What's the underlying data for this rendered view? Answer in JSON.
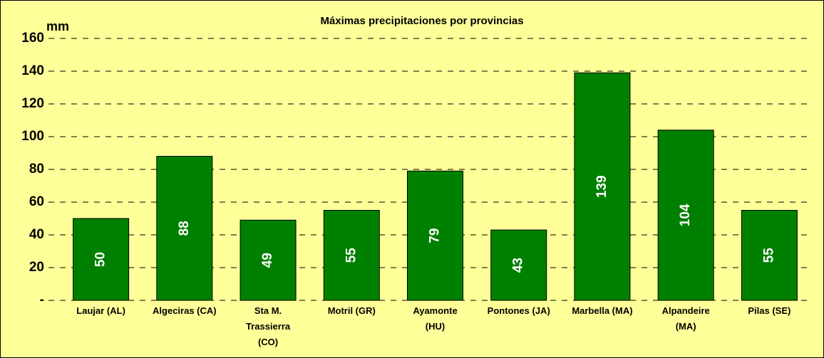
{
  "chart_data": {
    "type": "bar",
    "title": "Máximas precipitaciones por provincias",
    "y_label": "mm",
    "categories": [
      "Laujar (AL)",
      "Algeciras (CA)",
      "Sta M. Trassierra (CO)",
      "Motril (GR)",
      "Ayamonte (HU)",
      "Pontones (JA)",
      "Marbella (MA)",
      "Alpandeire (MA)",
      "Pilas (SE)"
    ],
    "values": [
      50,
      88,
      49,
      55,
      79,
      43,
      139,
      104,
      55
    ],
    "color": "#008000",
    "background": "#ffff99",
    "ylim": [
      0,
      160
    ],
    "yticks": [
      {
        "value": 0,
        "label": "-"
      },
      20,
      40,
      60,
      80,
      100,
      120,
      140,
      160
    ],
    "grid": true
  }
}
